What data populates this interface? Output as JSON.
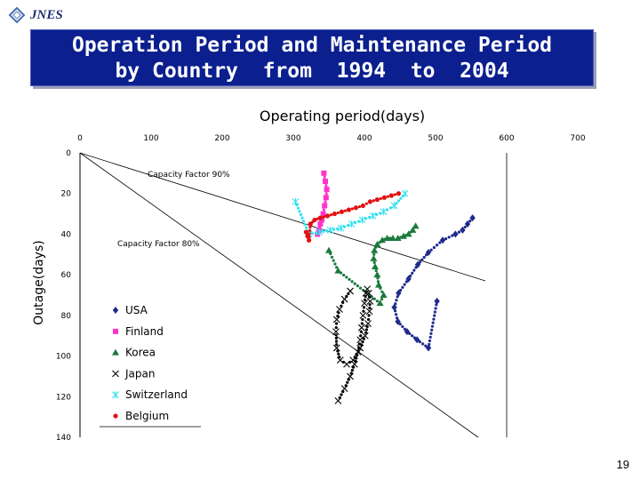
{
  "logo": {
    "text": "JNES"
  },
  "slide": {
    "title_line1": "Operation Period and Maintenance Period",
    "title_line2": "by Country  from  1994  to  2004",
    "page_number": "19"
  },
  "colors": {
    "title_bg": "#0b1f8f",
    "USA": "#1f2a8c",
    "Finland": "#ff33cc",
    "Korea": "#1a7a3c",
    "Japan": "#000000",
    "Switzerland": "#33e0f0",
    "Belgium": "#e01010"
  },
  "chart_data": {
    "type": "scatter",
    "title": "Operating period(days)",
    "xlabel": "Operating period(days)",
    "ylabel": "Outage(days)",
    "xlim": [
      0,
      700
    ],
    "ylim": [
      0,
      140
    ],
    "y_inverted": true,
    "x_ticks": [
      "0",
      "100",
      "200",
      "300",
      "400",
      "500",
      "600",
      "700"
    ],
    "y_ticks": [
      "0",
      "20",
      "40",
      "60",
      "80",
      "100",
      "120",
      "140"
    ],
    "reference_lines": [
      {
        "label": "Capacity Factor 90%",
        "x": [
          0,
          570
        ],
        "y": [
          0,
          63
        ]
      },
      {
        "label": "Capacity Factor 80%",
        "x": [
          0,
          560
        ],
        "y": [
          0,
          140
        ]
      },
      {
        "label": "",
        "x": [
          600,
          600
        ],
        "y": [
          0,
          140
        ]
      }
    ],
    "series": [
      {
        "name": "USA",
        "marker": "diamond",
        "x": [
          552,
          545,
          538,
          528,
          510,
          490,
          475,
          462,
          448,
          442,
          447,
          460,
          474,
          490,
          502
        ],
        "y": [
          32,
          35,
          38,
          40,
          43,
          49,
          55,
          62,
          69,
          76,
          83,
          88,
          92,
          96,
          73
        ]
      },
      {
        "name": "Finland",
        "marker": "square",
        "x": [
          343,
          345,
          347,
          346,
          344,
          342,
          340,
          338,
          336,
          334
        ],
        "y": [
          10,
          14,
          18,
          22,
          26,
          30,
          33,
          35,
          38,
          40
        ]
      },
      {
        "name": "Korea",
        "marker": "triangle",
        "x": [
          472,
          468,
          462,
          455,
          447,
          440,
          432,
          425,
          418,
          414,
          413,
          415,
          418,
          420,
          427,
          422,
          363,
          350
        ],
        "y": [
          36,
          38,
          40,
          41,
          42,
          42,
          42,
          43,
          45,
          48,
          52,
          56,
          60,
          65,
          70,
          74,
          58,
          48
        ]
      },
      {
        "name": "Japan",
        "marker": "x",
        "x": [
          363,
          372,
          380,
          386,
          391,
          394,
          396,
          398,
          400,
          402,
          404,
          406,
          408,
          407,
          405,
          401,
          394,
          384,
          375,
          366,
          361,
          360,
          361,
          365,
          372,
          380
        ],
        "y": [
          122,
          116,
          110,
          104,
          98,
          92,
          86,
          80,
          74,
          69,
          67,
          69,
          73,
          78,
          84,
          90,
          96,
          102,
          104,
          102,
          96,
          88,
          82,
          77,
          72,
          68
        ]
      },
      {
        "name": "Switzerland",
        "marker": "asterisk",
        "x": [
          303,
          322,
          337,
          352,
          367,
          382,
          397,
          412,
          427,
          442,
          457
        ],
        "y": [
          24,
          40,
          39,
          38,
          37,
          35,
          33,
          31,
          29,
          26,
          20
        ]
      },
      {
        "name": "Belgium",
        "marker": "circle",
        "x": [
          318,
          320,
          322,
          324,
          330,
          338,
          348,
          358,
          368,
          378,
          388,
          398,
          408,
          418,
          428,
          438,
          448
        ],
        "y": [
          39,
          41,
          43,
          35,
          33,
          32,
          31,
          30,
          29,
          28,
          27,
          26,
          24,
          23,
          22,
          21,
          20
        ]
      }
    ],
    "annotations": [
      "Capacity Factor 90%",
      "Capacity Factor 80%"
    ],
    "legend": {
      "placement": "bottom-left",
      "entries": [
        "USA",
        "Finland",
        "Korea",
        "Japan",
        "Switzerland",
        "Belgium"
      ]
    },
    "grid": false
  }
}
